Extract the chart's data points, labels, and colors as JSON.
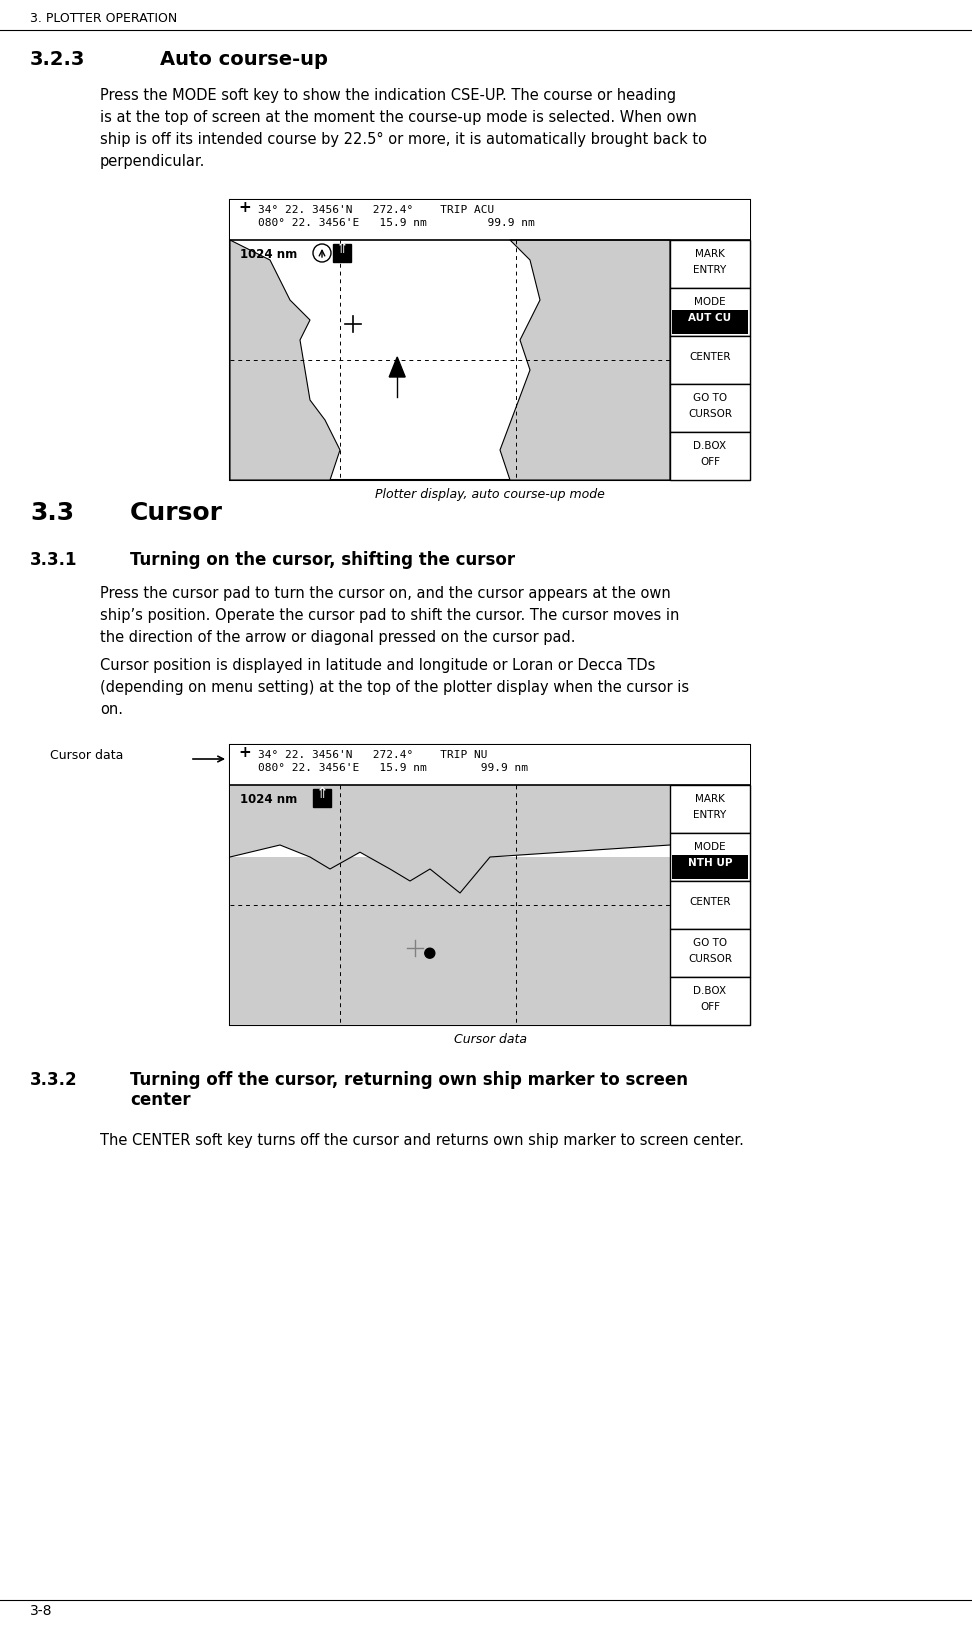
{
  "page_header": "3. PLOTTER OPERATION",
  "section_323": "3.2.3",
  "section_323_title": "Auto course-up",
  "section_323_body1": "Press the MODE soft key to show the indication CSE-UP. The course or heading is at the top of screen at the moment the course-up mode is selected. When own ship is off its intended course by 22.5° or more, it is automatically brought back to perpendicular.",
  "fig1_caption": "Plotter display, auto course-up mode",
  "fig1_header_line1": "34° 22. 3456'N   272.4°    TRIP ACU",
  "fig1_header_line2": "080° 22. 3456'E   15.9 nm         99.9 nm",
  "fig1_scale": "1024 nm",
  "fig1_softkeys": [
    "MARK\nENTRY",
    "MODE\nAUT CU",
    "CENTER",
    "GO TO\nCURSOR",
    "D.BOX\nOFF"
  ],
  "fig1_plus": "+",
  "section_33": "3.3",
  "section_33_title": "Cursor",
  "section_331": "3.3.1",
  "section_331_title": "Turning on the cursor, shifting the cursor",
  "section_331_body1": "Press the cursor pad to turn the cursor on, and the cursor appears at the own ship’s position. Operate the cursor pad to shift the cursor. The cursor moves in the direction of the arrow or diagonal pressed on the cursor pad.",
  "section_331_body2": "Cursor position is displayed in latitude and longitude or Loran or Decca TDs (depending on menu setting) at the top of the plotter display when the cursor is on.",
  "fig2_caption": "Cursor data",
  "fig2_header_line1": "34° 22. 3456'N   272.4°    TRIP NU",
  "fig2_header_line2": "080° 22. 3456'E   15.9 nm        99.9 nm",
  "fig2_scale": "1024 nm",
  "fig2_softkeys": [
    "MARK\nENTRY",
    "MODE\nNTH UP",
    "CENTER",
    "GO TO\nCURSOR",
    "D.BOX\nOFF"
  ],
  "fig2_cursor_label": "Cursor data",
  "section_332": "3.3.2",
  "section_332_title": "Turning off the cursor, returning own ship marker to screen center",
  "section_332_body": "The CENTER soft key turns off the cursor and returns own ship marker to screen center.",
  "page_footer": "3-8",
  "bg_color": "#ffffff",
  "text_color": "#000000",
  "fig_border_color": "#000000",
  "fig_bg": "#ffffff",
  "map_gray": "#cccccc",
  "header_bg": "#ffffff"
}
